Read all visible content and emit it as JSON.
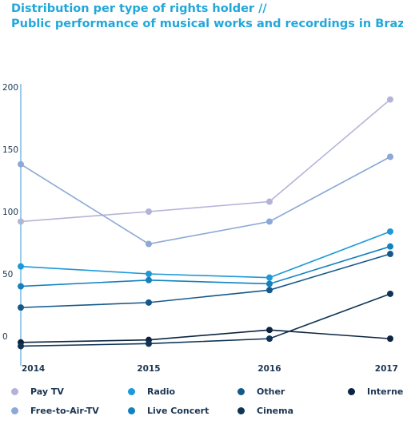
{
  "title_lines": [
    "Distribution per type of rights holder //",
    "Public performance of musical works and recordings in Brazil."
  ],
  "chart_data": {
    "type": "line",
    "title": "Distribution per type of rights holder // Public performance of musical works and recordings in Brazil.",
    "xlabel": "",
    "ylabel": "",
    "x": [
      "2014",
      "2015",
      "2016",
      "2017"
    ],
    "ylim": [
      -10,
      200
    ],
    "yticks": [
      "0",
      "50",
      "100",
      "150",
      "200"
    ],
    "grid": false,
    "legend_position": "bottom",
    "series": [
      {
        "name": "Pay TV",
        "color": "#b3b3d9",
        "values": [
          92,
          100,
          108,
          190
        ]
      },
      {
        "name": "Free-to-Air-TV",
        "color": "#8ba8d6",
        "values": [
          138,
          74,
          92,
          144
        ]
      },
      {
        "name": "Radio",
        "color": "#1d99d9",
        "values": [
          56,
          50,
          47,
          84
        ]
      },
      {
        "name": "Live Concert",
        "color": "#1281bf",
        "values": [
          40,
          45,
          42,
          72
        ]
      },
      {
        "name": "Other",
        "color": "#15598a",
        "values": [
          23,
          27,
          37,
          66
        ]
      },
      {
        "name": "Internet",
        "color": "#0d2440",
        "values": [
          -5,
          -3,
          5,
          -2
        ]
      },
      {
        "name": "Cinema",
        "color": "#0f3455",
        "values": [
          -8,
          -6,
          -2,
          34
        ]
      }
    ]
  }
}
